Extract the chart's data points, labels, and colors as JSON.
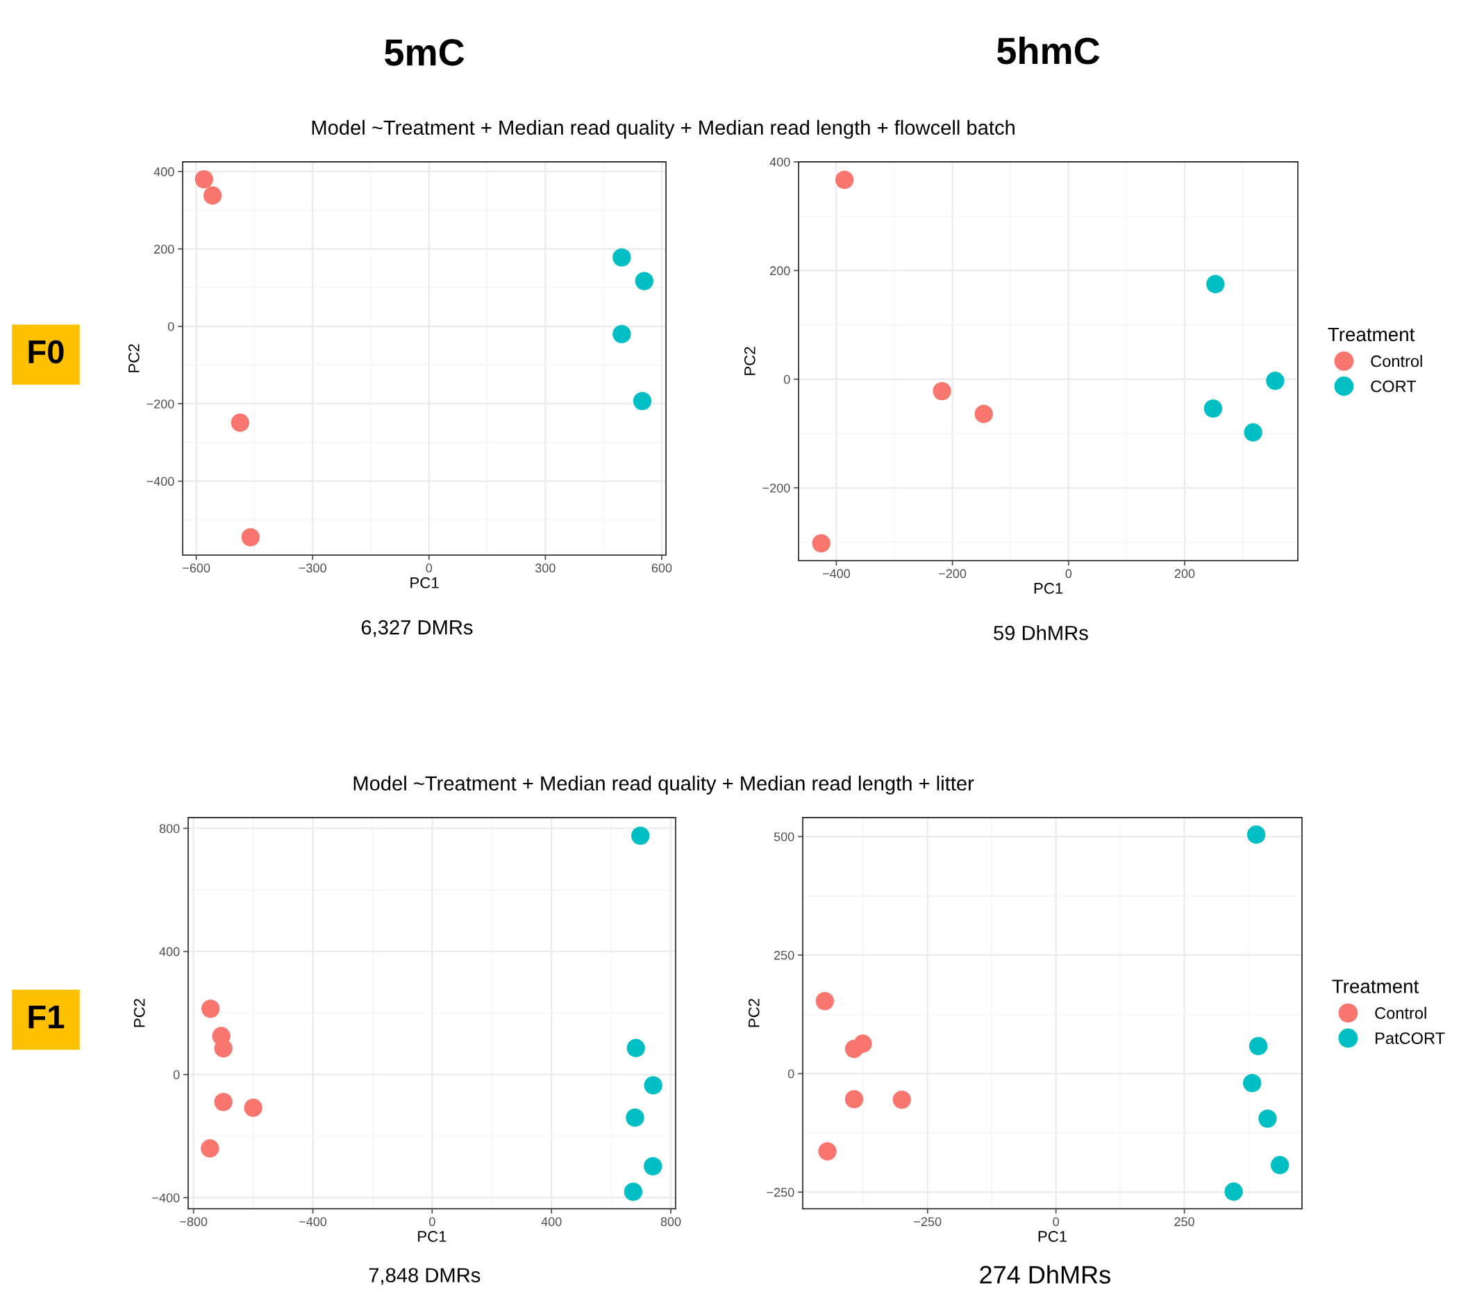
{
  "chart_data": [
    {
      "type": "scatter",
      "title": "5mC",
      "subtitle": "Model ~Treatment + Median read quality + Median read length + flowcell batch",
      "xlabel": "PC1",
      "ylabel": "PC2",
      "annotations": [
        "6,327 DMRs",
        "F0"
      ],
      "xlim": [
        -635,
        611
      ],
      "ylim": [
        -591,
        425
      ],
      "xticks": [
        -600,
        -300,
        0,
        300,
        600
      ],
      "yticks": [
        400,
        200,
        0,
        -200,
        -400
      ],
      "grid": true,
      "marker": "circle",
      "legend": false,
      "series": [
        {
          "color": "#f8766d",
          "x": [
            -580,
            -558,
            -487,
            -460
          ],
          "values": [
            380,
            338,
            -249,
            -545
          ]
        },
        {
          "color": "#00bfc4",
          "x": [
            497,
            555,
            497,
            550
          ],
          "values": [
            178,
            117,
            -20,
            -193
          ]
        }
      ]
    },
    {
      "type": "scatter",
      "title": "5hmC",
      "xlabel": "PC1",
      "ylabel": "PC2",
      "annotations": [
        "59 DhMRs"
      ],
      "xlim": [
        -465,
        395
      ],
      "ylim": [
        -334,
        400
      ],
      "xticks": [
        -400,
        -200,
        0,
        200
      ],
      "yticks": [
        400,
        200,
        0,
        -200
      ],
      "grid": true,
      "marker": "circle",
      "legend": "right",
      "legend_title": "Treatment",
      "series": [
        {
          "name": "Control",
          "color": "#f8766d",
          "x": [
            -386,
            -218,
            -146,
            -426
          ],
          "values": [
            367,
            -22,
            -64,
            -302
          ]
        },
        {
          "name": "CORT",
          "color": "#00bfc4",
          "x": [
            253,
            356,
            249,
            318
          ],
          "values": [
            175,
            -3,
            -54,
            -98
          ]
        }
      ]
    },
    {
      "type": "scatter",
      "subtitle": "Model ~Treatment + Median read quality + Median read length + litter",
      "xlabel": "PC1",
      "ylabel": "PC2",
      "annotations": [
        "7,848 DMRs",
        "F1"
      ],
      "xlim": [
        -818,
        816
      ],
      "ylim": [
        -436,
        835
      ],
      "xticks": [
        -800,
        -400,
        0,
        400,
        800
      ],
      "yticks": [
        800,
        400,
        0,
        -400
      ],
      "grid": true,
      "marker": "circle",
      "legend": false,
      "series": [
        {
          "color": "#f8766d",
          "x": [
            -743,
            -707,
            -700,
            -700,
            -600,
            -745
          ],
          "values": [
            214,
            125,
            85,
            -89,
            -108,
            -240
          ]
        },
        {
          "color": "#00bfc4",
          "x": [
            698,
            683,
            741,
            680,
            740,
            674
          ],
          "values": [
            776,
            86,
            -35,
            -140,
            -298,
            -381
          ]
        }
      ]
    },
    {
      "type": "scatter",
      "xlabel": "PC1",
      "ylabel": "PC2",
      "annotations": [
        "274 DhMRs"
      ],
      "xlim": [
        -493,
        479
      ],
      "ylim": [
        -285,
        540
      ],
      "xticks": [
        -250,
        0,
        250
      ],
      "yticks": [
        500,
        250,
        0,
        -250
      ],
      "grid": true,
      "marker": "circle",
      "legend": "right",
      "legend_title": "Treatment",
      "series": [
        {
          "name": "Control",
          "color": "#f8766d",
          "x": [
            -450,
            -393,
            -376,
            -393,
            -300,
            -445
          ],
          "values": [
            153,
            52,
            63,
            -54,
            -55,
            -164
          ]
        },
        {
          "name": "PatCORT",
          "color": "#00bfc4",
          "x": [
            390,
            394,
            382,
            412,
            436,
            346
          ],
          "values": [
            504,
            58,
            -20,
            -95,
            -193,
            -249
          ]
        }
      ]
    }
  ]
}
